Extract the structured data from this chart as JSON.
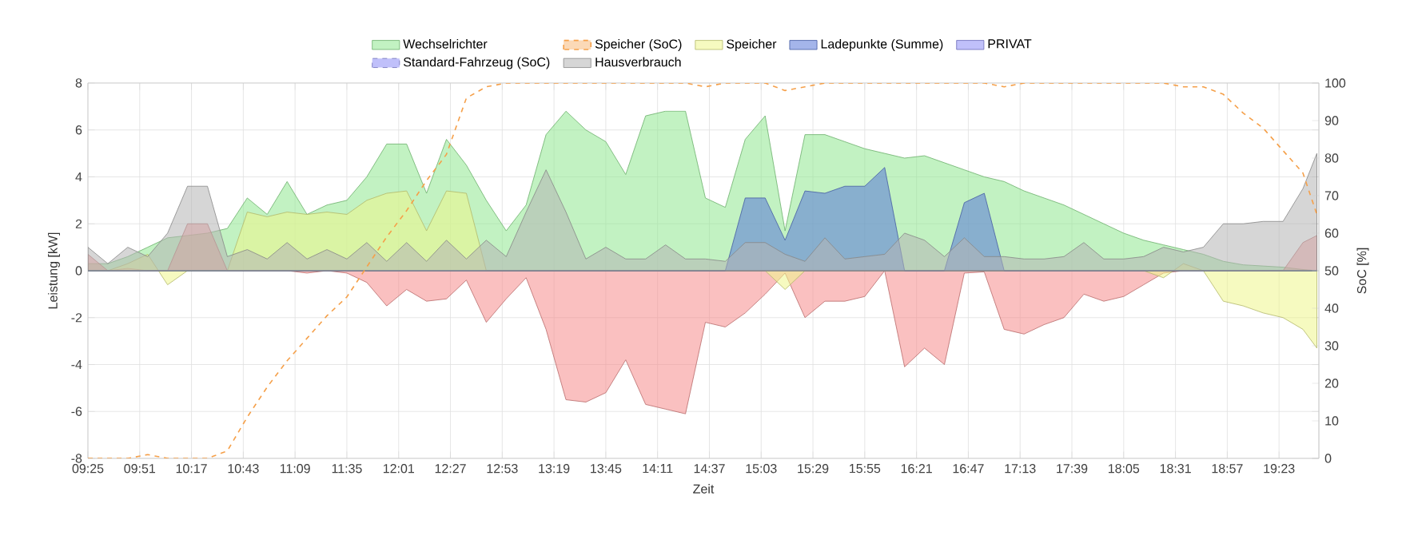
{
  "chart_data": {
    "type": "area",
    "xlabel": "Zeit",
    "ylabel": "Leistung [kW]",
    "y2label": "SoC [%]",
    "grid": true,
    "legend": "top",
    "xlim": [
      9.4167,
      19.7167
    ],
    "xticks": [
      {
        "value": 9.4167,
        "label": "09:25"
      },
      {
        "value": 9.85,
        "label": "09:51"
      },
      {
        "value": 10.2833,
        "label": "10:17"
      },
      {
        "value": 10.7167,
        "label": "10:43"
      },
      {
        "value": 11.15,
        "label": "11:09"
      },
      {
        "value": 11.5833,
        "label": "11:35"
      },
      {
        "value": 12.0167,
        "label": "12:01"
      },
      {
        "value": 12.45,
        "label": "12:27"
      },
      {
        "value": 12.8833,
        "label": "12:53"
      },
      {
        "value": 13.3167,
        "label": "13:19"
      },
      {
        "value": 13.75,
        "label": "13:45"
      },
      {
        "value": 14.1833,
        "label": "14:11"
      },
      {
        "value": 14.6167,
        "label": "14:37"
      },
      {
        "value": 15.05,
        "label": "15:03"
      },
      {
        "value": 15.4833,
        "label": "15:29"
      },
      {
        "value": 15.9167,
        "label": "15:55"
      },
      {
        "value": 16.35,
        "label": "16:21"
      },
      {
        "value": 16.7833,
        "label": "16:47"
      },
      {
        "value": 17.2167,
        "label": "17:13"
      },
      {
        "value": 17.65,
        "label": "17:39"
      },
      {
        "value": 18.0833,
        "label": "18:05"
      },
      {
        "value": 18.5167,
        "label": "18:31"
      },
      {
        "value": 18.95,
        "label": "18:57"
      },
      {
        "value": 19.3833,
        "label": "19:23"
      }
    ],
    "ylim": [
      -8,
      8
    ],
    "yticks": [
      -8,
      -6,
      -4,
      -2,
      0,
      2,
      4,
      6,
      8
    ],
    "y2lim": [
      0,
      100
    ],
    "y2ticks": [
      0,
      10,
      20,
      30,
      40,
      50,
      60,
      70,
      80,
      90,
      100
    ],
    "x": [
      9.4167,
      9.5833,
      9.75,
      9.9167,
      10.0833,
      10.25,
      10.4167,
      10.5833,
      10.75,
      10.9167,
      11.0833,
      11.25,
      11.4167,
      11.5833,
      11.75,
      11.9167,
      12.0833,
      12.25,
      12.4167,
      12.5833,
      12.75,
      12.9167,
      13.0833,
      13.25,
      13.4167,
      13.5833,
      13.75,
      13.9167,
      14.0833,
      14.25,
      14.4167,
      14.5833,
      14.75,
      14.9167,
      15.0833,
      15.25,
      15.4167,
      15.5833,
      15.75,
      15.9167,
      16.0833,
      16.25,
      16.4167,
      16.5833,
      16.75,
      16.9167,
      17.0833,
      17.25,
      17.4167,
      17.5833,
      17.75,
      17.9167,
      18.0833,
      18.25,
      18.4167,
      18.5833,
      18.75,
      18.9167,
      19.0833,
      19.25,
      19.4167,
      19.5833,
      19.7
    ],
    "series": [
      {
        "name": "Wechselrichter",
        "color": "#8fe88f",
        "values": [
          0.3,
          0.3,
          0.6,
          1.0,
          1.4,
          1.5,
          1.6,
          1.8,
          3.1,
          2.4,
          3.8,
          2.4,
          2.8,
          3.0,
          4.0,
          5.4,
          5.4,
          3.3,
          5.6,
          4.5,
          3.0,
          1.7,
          2.8,
          5.8,
          6.8,
          6.0,
          5.5,
          4.1,
          6.6,
          6.8,
          6.8,
          3.1,
          2.7,
          5.6,
          6.6,
          1.7,
          5.8,
          5.8,
          5.5,
          5.2,
          5.0,
          4.8,
          4.9,
          4.6,
          4.3,
          4.0,
          3.8,
          3.4,
          3.1,
          2.8,
          2.4,
          2.0,
          1.6,
          1.3,
          1.1,
          0.9,
          0.7,
          0.4,
          0.25,
          0.2,
          0.15,
          0.05,
          0
        ]
      },
      {
        "color": "#f58c8c",
        "values": [
          0.7,
          0,
          0.1,
          0,
          0,
          2.0,
          2.0,
          0,
          0,
          0,
          0,
          -0.1,
          0,
          -0.1,
          -0.5,
          -1.5,
          -0.8,
          -1.3,
          -1.2,
          -0.4,
          -2.2,
          -1.2,
          -0.3,
          -2.5,
          -5.5,
          -5.6,
          -5.2,
          -3.8,
          -5.7,
          -5.9,
          -6.1,
          -2.2,
          -2.4,
          -1.8,
          -1.0,
          -0.1,
          -2.0,
          -1.3,
          -1.3,
          -1.1,
          0,
          -4.1,
          -3.3,
          -4.0,
          -0.1,
          -0.05,
          -2.5,
          -2.7,
          -2.3,
          -2.0,
          -1.0,
          -1.3,
          -1.1,
          -0.6,
          -0.1,
          0,
          0,
          0,
          0,
          0,
          0,
          1.2,
          1.5
        ]
      },
      {
        "name": "Speicher (SoC)",
        "type": "line",
        "axis": "y2",
        "line_style": "dashed",
        "color": "#f5a04a",
        "values": [
          0,
          0,
          0,
          1,
          0,
          0,
          0,
          2,
          11,
          19,
          26,
          32,
          38,
          43,
          51,
          59,
          66,
          74,
          81,
          96,
          99,
          100,
          100,
          100,
          100,
          100,
          100,
          100,
          100,
          100,
          100,
          99,
          100,
          100,
          100,
          98,
          99,
          100,
          100,
          100,
          100,
          100,
          100,
          100,
          100,
          100,
          99,
          100,
          100,
          100,
          100,
          100,
          100,
          100,
          100,
          99,
          99,
          97,
          92,
          88,
          82,
          76,
          65
        ]
      },
      {
        "name": "Speicher",
        "color": "#eef58c",
        "values": [
          0,
          0,
          0.3,
          0.7,
          -0.6,
          0,
          0,
          0,
          2.5,
          2.3,
          2.5,
          2.4,
          2.5,
          2.4,
          3.0,
          3.3,
          3.4,
          1.7,
          3.4,
          3.3,
          0,
          0,
          0,
          0,
          0,
          0,
          0,
          0,
          0,
          0,
          0,
          0,
          0,
          0,
          0,
          -0.8,
          0,
          0,
          0,
          0,
          0,
          0,
          0,
          0,
          0,
          0,
          0,
          0,
          0,
          0,
          0,
          0,
          0,
          0,
          -0.3,
          0.3,
          0,
          -1.3,
          -1.5,
          -1.8,
          -2.0,
          -2.5,
          -3.3
        ]
      },
      {
        "name": "Ladepunkte (Summe)",
        "color": "#5a78d8",
        "values": [
          0,
          0,
          0,
          0,
          0,
          0,
          0,
          0,
          0,
          0,
          0,
          0,
          0,
          0,
          0,
          0,
          0,
          0,
          0,
          0,
          0,
          0,
          0,
          0,
          0,
          0,
          0,
          0,
          0,
          0,
          0,
          0,
          0,
          3.1,
          3.1,
          1.3,
          3.4,
          3.3,
          3.6,
          3.6,
          4.4,
          0,
          0,
          0,
          2.9,
          3.3,
          0,
          0,
          0,
          0,
          0,
          0,
          0,
          0,
          0,
          0,
          0,
          0,
          0,
          0,
          0,
          0,
          0
        ]
      },
      {
        "name": "PRIVAT",
        "color": "#8c8cf5",
        "values": [
          null,
          null,
          null,
          null,
          null,
          null,
          null,
          null,
          null,
          null,
          null,
          null,
          null,
          null,
          null,
          null,
          null,
          null,
          null,
          null,
          null,
          null,
          null,
          null,
          null,
          null,
          null,
          null,
          null,
          null,
          null,
          null,
          null,
          null,
          null,
          null,
          null,
          null,
          null,
          null,
          null,
          null,
          null,
          null,
          null,
          null,
          null,
          null,
          null,
          null,
          null,
          null,
          null,
          null,
          null,
          null,
          null,
          null,
          null,
          null,
          null,
          null,
          null
        ]
      },
      {
        "name": "Standard-Fahrzeug (SoC)",
        "line_style": "dashed",
        "color": "#8c8cf5",
        "values": [
          null,
          null,
          null,
          null,
          null,
          null,
          null,
          null,
          null,
          null,
          null,
          null,
          null,
          null,
          null,
          null,
          null,
          null,
          null,
          null,
          null,
          null,
          null,
          null,
          null,
          null,
          null,
          null,
          null,
          null,
          null,
          null,
          null,
          null,
          null,
          null,
          null,
          null,
          null,
          null,
          null,
          null,
          null,
          null,
          null,
          null,
          null,
          null,
          null,
          null,
          null,
          null,
          null,
          null,
          null,
          null,
          null,
          null,
          null,
          null,
          null,
          null,
          null
        ]
      },
      {
        "name": "Hausverbrauch",
        "color": "#b4b4b4",
        "values": [
          1.0,
          0.3,
          1.0,
          0.6,
          1.6,
          3.6,
          3.6,
          0.6,
          0.9,
          0.5,
          1.2,
          0.5,
          0.9,
          0.5,
          1.2,
          0.4,
          1.2,
          0.4,
          1.3,
          0.5,
          1.3,
          0.6,
          2.5,
          4.3,
          2.5,
          0.5,
          1.0,
          0.5,
          0.5,
          1.1,
          0.5,
          0.5,
          0.4,
          1.2,
          1.2,
          0.7,
          0.4,
          1.4,
          0.5,
          0.6,
          0.7,
          1.6,
          1.3,
          0.6,
          1.4,
          0.6,
          0.6,
          0.5,
          0.5,
          0.6,
          1.2,
          0.5,
          0.5,
          0.6,
          1.0,
          0.8,
          1.0,
          2.0,
          2.0,
          2.1,
          2.1,
          3.5,
          5.0
        ]
      }
    ]
  }
}
